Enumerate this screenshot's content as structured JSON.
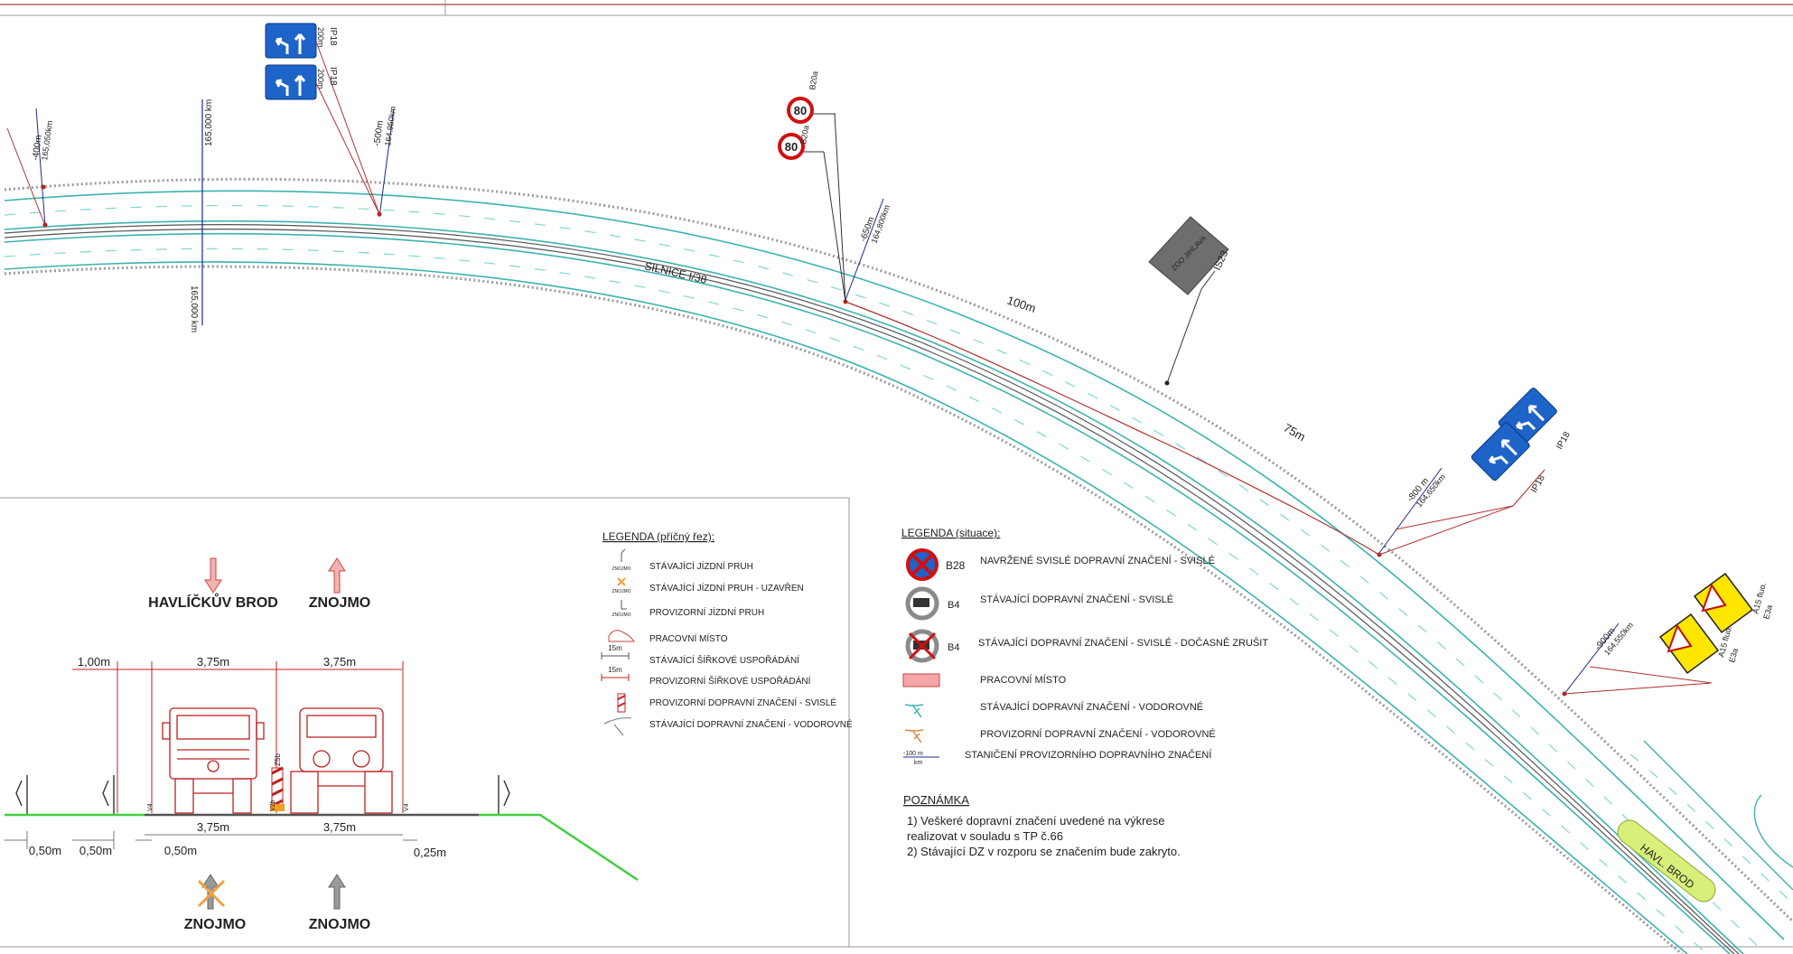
{
  "plan": {
    "road_name": "SILNICE I/38",
    "km_marker_top": "165,000 km",
    "km_marker_bottom": "165,000 km",
    "dist_100": "100m",
    "dist_75": "75m",
    "stations": [
      {
        "d": "-400m",
        "k": "165,050km"
      },
      {
        "d": "-500m",
        "k": "164,950km"
      },
      {
        "d": "-650m",
        "k": "164,800km"
      },
      {
        "d": "-800 m",
        "k": "164,650km"
      },
      {
        "d": "-900m",
        "k": "164,550km"
      }
    ],
    "signs": {
      "ip18": "IP18",
      "b20a": "B20a",
      "speed": "80",
      "is23": "IS23",
      "is23_text": "ZOO JIHLAVA",
      "a15": "A15 fluo.",
      "e3a": "E3a",
      "dist_200": "200m",
      "dist_500": "500m",
      "dist_300": "300m"
    },
    "havl_brod_label": "HAVL. BROD"
  },
  "cross_section": {
    "dir_left": "HAVLÍČKŮV BROD",
    "dir_right": "ZNOJMO",
    "bottom_left": "ZNOJMO",
    "bottom_right": "ZNOJMO",
    "top_dims": [
      "1,00m",
      "3,75m",
      "3,75m"
    ],
    "bottom_dims": [
      "3,75m",
      "3,75m"
    ],
    "small_dims": [
      "0,50m",
      "0,50m",
      "0,50m",
      "0,25m"
    ],
    "mark_v4": "V4",
    "mark_v2b": "V2b",
    "mark_z5b": "Z5b"
  },
  "legend_cross": {
    "title": "LEGENDA (příčný řez):",
    "items": [
      "STÁVAJÍCÍ JÍZDNÍ PRUH",
      "STÁVAJÍCÍ JÍZDNÍ PRUH - UZAVŘEN",
      "PROVIZORNÍ JÍZDNÍ PRUH",
      "PRACOVNÍ MÍSTO",
      "STÁVAJÍCÍ ŠÍŘKOVÉ USPOŘÁDÁNÍ",
      "PROVIZORNÍ ŠÍŘKOVÉ USPOŘÁDÁNÍ",
      "PROVIZORNÍ DOPRAVNÍ ZNAČENÍ - SVISLÉ",
      "STÁVAJÍCÍ DOPRAVNÍ ZNAČENÍ - VODOROVNÉ"
    ],
    "icon_text": "ZNOJMO",
    "icon_15m": "15m"
  },
  "legend_situ": {
    "title": "LEGENDA (situace):",
    "b28": "B28",
    "b4": "B4",
    "items": [
      "NAVRŽENÉ SVISLÉ DOPRAVNÍ ZNAČENÍ - SVISLÉ",
      "STÁVAJÍCÍ DOPRAVNÍ ZNAČENÍ - SVISLÉ",
      "STÁVAJÍCÍ DOPRAVNÍ ZNAČENÍ - SVISLÉ  - DOČASNĚ ZRUŠIT",
      "PRACOVNÍ MÍSTO",
      "STÁVAJÍCÍ DOPRAVNÍ ZNAČENÍ - VODOROVNÉ",
      "PROVIZORNÍ DOPRAVNÍ ZNAČENÍ - VODOROVNÉ",
      "STANIČENÍ PROVIZORNÍHO DOPRAVNÍHO ZNAČENÍ"
    ],
    "stanic_top": "-100 m",
    "stanic_bottom": "km"
  },
  "note": {
    "title": "POZNÁMKA",
    "line1": "1) Veškeré dopravní značení uvedené na výkrese",
    "line2": "realizovat v souladu s TP č.66",
    "line3": "2) Stávající DZ v rozporu se značením bude zakryto."
  }
}
